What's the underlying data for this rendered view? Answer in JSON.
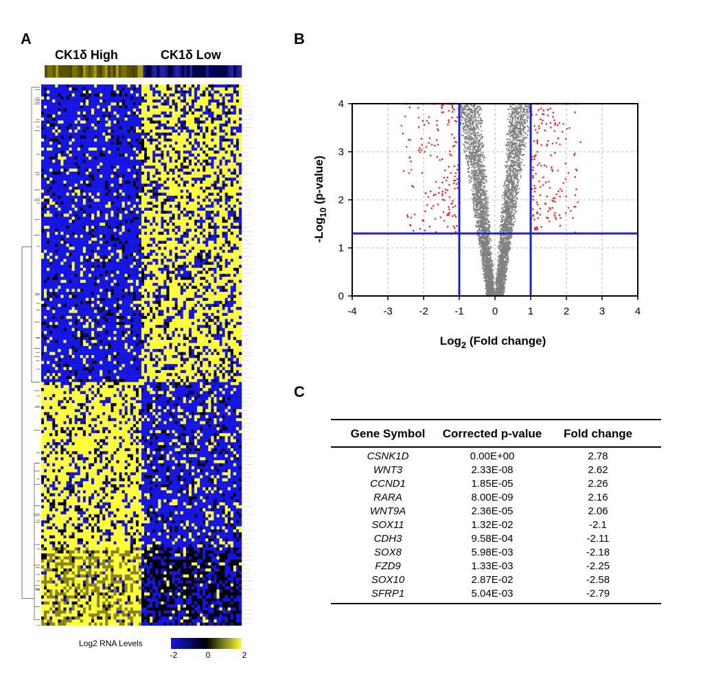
{
  "panels": {
    "a": "A",
    "b": "B",
    "c": "C"
  },
  "heatmap": {
    "group_high": "CK1δ High",
    "group_low": "CK1δ Low",
    "legend_title": "Log2 RNA Levels",
    "legend_ticks": [
      "-2",
      "0",
      "2"
    ],
    "colors": {
      "low": "#1414e6",
      "mid": "#000000",
      "high": "#ffff3c"
    }
  },
  "chart_data": [
    {
      "type": "scatter",
      "title": "",
      "xlabel_main": "Log",
      "xlabel_sub": "2",
      "xlabel_rest": " (Fold change)",
      "ylabel_main": "-Log",
      "ylabel_sub": "10",
      "ylabel_rest": " (p-value)",
      "xlim": [
        -4,
        4
      ],
      "ylim": [
        0,
        4
      ],
      "xticks": [
        "-4",
        "-3",
        "-2",
        "-1",
        "0",
        "1",
        "2",
        "3",
        "4"
      ],
      "yticks": [
        "0",
        "1",
        "2",
        "3",
        "4"
      ],
      "grid": true,
      "thresholds": {
        "fold_change": [
          -1,
          1
        ],
        "neg_log10_p": 1.3
      },
      "colors": {
        "significant": "#e8282a",
        "nonsignificant": "#808080",
        "threshold": "#1a22c8"
      }
    },
    {
      "type": "table",
      "columns": [
        "Gene Symbol",
        "Corrected p-value",
        "Fold change"
      ],
      "rows": [
        [
          "CSNK1D",
          "0.00E+00",
          "2.78"
        ],
        [
          "WNT3",
          "2.33E-08",
          "2.62"
        ],
        [
          "CCND1",
          "1.85E-05",
          "2.26"
        ],
        [
          "RARA",
          "8.00E-09",
          "2.16"
        ],
        [
          "WNT9A",
          "2.36E-05",
          "2.06"
        ],
        [
          "SOX11",
          "1.32E-02",
          "-2.1"
        ],
        [
          "CDH3",
          "9.58E-04",
          "-2.11"
        ],
        [
          "SOX8",
          "5.98E-03",
          "-2.18"
        ],
        [
          "FZD9",
          "1.33E-03",
          "-2.25"
        ],
        [
          "SOX10",
          "2.87E-02",
          "-2.58"
        ],
        [
          "SFRP1",
          "5.04E-03",
          "-2.79"
        ]
      ]
    }
  ]
}
